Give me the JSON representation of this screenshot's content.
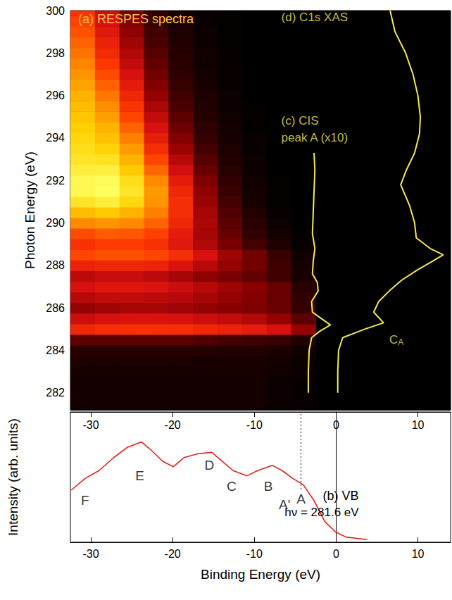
{
  "chart_data": [
    {
      "type": "heatmap",
      "title": "(a) RESPES spectra",
      "ylabel": "Photon Energy (eV)",
      "xlim": [
        -32.5,
        14
      ],
      "xticks": [
        -30,
        -20,
        -10,
        0,
        10
      ],
      "ylim": [
        281.2,
        300
      ],
      "yticks": [
        282,
        284,
        286,
        288,
        290,
        292,
        294,
        296,
        298,
        300
      ],
      "tick_labels": "y",
      "grid": false,
      "cells": {
        "x": [
          -31,
          -28,
          -25,
          -22,
          -19,
          -16,
          -13,
          -10,
          -7,
          -4
        ],
        "y": [
          281.5,
          282.0,
          282.5,
          283.0,
          283.5,
          284.0,
          284.5,
          285.0,
          285.5,
          286.0,
          286.5,
          287.0,
          287.5,
          288.0,
          288.5,
          289.0,
          289.5,
          290.0,
          290.5,
          291.0,
          291.5,
          292.0,
          292.5,
          293.0,
          293.5,
          294.0,
          294.5,
          295.0,
          295.5,
          296.0,
          296.5,
          297.0,
          297.5,
          298.0,
          298.5,
          299.0,
          299.5,
          300.0
        ],
        "z": [
          [
            0.5,
            0.5,
            0.5,
            0.5,
            0.5,
            0.5,
            0.5,
            0.5,
            0.3,
            0.2
          ],
          [
            0.5,
            0.5,
            0.5,
            0.5,
            0.5,
            0.5,
            0.5,
            0.5,
            0.3,
            0.2
          ],
          [
            0.5,
            0.5,
            0.5,
            0.5,
            0.5,
            0.5,
            0.5,
            0.5,
            0.3,
            0.2
          ],
          [
            0.6,
            0.6,
            0.6,
            0.6,
            0.6,
            0.6,
            0.6,
            0.6,
            0.4,
            0.3
          ],
          [
            0.7,
            0.7,
            0.7,
            0.7,
            0.7,
            0.6,
            0.6,
            0.6,
            0.5,
            0.3
          ],
          [
            1,
            1,
            1,
            1,
            1,
            0.9,
            0.8,
            0.8,
            0.7,
            0.4
          ],
          [
            2,
            2,
            2,
            2,
            2,
            1.8,
            1.6,
            1.5,
            1.3,
            0.8
          ],
          [
            5,
            5.2,
            5.3,
            5.3,
            5.2,
            5,
            4.8,
            4.6,
            4.2,
            3
          ],
          [
            4,
            4.2,
            4.3,
            4.3,
            4.2,
            4,
            3.8,
            3.5,
            3,
            2
          ],
          [
            3,
            3.2,
            3.3,
            3.3,
            3.2,
            3,
            2.8,
            2.6,
            2.2,
            1.3
          ],
          [
            3.6,
            3.8,
            3.8,
            3.7,
            3.6,
            3.3,
            3,
            2.7,
            2.2,
            1.2
          ],
          [
            4.2,
            4.4,
            4.4,
            4.3,
            4,
            3.6,
            3.2,
            2.8,
            2.2,
            1
          ],
          [
            3.7,
            3.9,
            3.9,
            3.7,
            3.3,
            2.9,
            2.5,
            2.1,
            1.5,
            0.6
          ],
          [
            4.8,
            5,
            5,
            4.8,
            4.3,
            3.6,
            3,
            2.4,
            1.5,
            0.5
          ],
          [
            5.8,
            6,
            6,
            5.8,
            5.2,
            4.2,
            3.2,
            2.4,
            1.4,
            0.4
          ],
          [
            5.3,
            5.6,
            5.6,
            5.3,
            4.5,
            3.5,
            2.5,
            1.6,
            0.8,
            0.2
          ],
          [
            5.9,
            6.2,
            6.1,
            5.7,
            4.6,
            3.3,
            2.2,
            1.2,
            0.5,
            0.1
          ],
          [
            7,
            7.2,
            7,
            6.3,
            5,
            3.4,
            2,
            1,
            0.3,
            0
          ],
          [
            8,
            8.3,
            7.8,
            6.8,
            5.2,
            3.3,
            1.8,
            0.8,
            0.2,
            0
          ],
          [
            9,
            9.3,
            8.6,
            7.2,
            5.2,
            3.1,
            1.6,
            0.6,
            0.1,
            0
          ],
          [
            9.6,
            9.8,
            9,
            7.3,
            5,
            2.9,
            1.4,
            0.5,
            0.1,
            0
          ],
          [
            9.6,
            9.7,
            8.8,
            7,
            4.6,
            2.6,
            1.2,
            0.4,
            0.1,
            0
          ],
          [
            9.3,
            9.3,
            8.3,
            6.4,
            4.1,
            2.2,
            1,
            0.3,
            0,
            0
          ],
          [
            9,
            8.9,
            7.8,
            5.8,
            3.6,
            1.9,
            0.8,
            0.3,
            0,
            0
          ],
          [
            8.8,
            8.5,
            7.3,
            5.2,
            3.1,
            1.6,
            0.7,
            0.2,
            0,
            0
          ],
          [
            8.6,
            8.1,
            6.8,
            4.7,
            2.7,
            1.3,
            0.6,
            0.2,
            0,
            0
          ],
          [
            8.4,
            7.8,
            6.3,
            4.2,
            2.3,
            1.1,
            0.5,
            0.1,
            0,
            0
          ],
          [
            8.2,
            7.4,
            5.8,
            3.8,
            2,
            0.9,
            0.4,
            0.1,
            0,
            0
          ],
          [
            8,
            7.1,
            5.4,
            3.4,
            1.7,
            0.8,
            0.3,
            0.1,
            0,
            0
          ],
          [
            7.8,
            6.7,
            5,
            3,
            1.5,
            0.7,
            0.3,
            0,
            0,
            0
          ],
          [
            7.5,
            6.3,
            4.6,
            2.7,
            1.3,
            0.6,
            0.2,
            0,
            0,
            0
          ],
          [
            7.2,
            5.9,
            4.2,
            2.4,
            1.1,
            0.5,
            0.2,
            0,
            0,
            0
          ],
          [
            6.9,
            5.5,
            3.8,
            2.1,
            1,
            0.4,
            0.2,
            0,
            0,
            0
          ],
          [
            6.6,
            5.1,
            3.5,
            1.9,
            0.9,
            0.4,
            0.1,
            0,
            0,
            0
          ],
          [
            6.3,
            4.8,
            3.2,
            1.7,
            0.8,
            0.3,
            0.1,
            0,
            0,
            0
          ],
          [
            6,
            4.5,
            2.9,
            1.5,
            0.7,
            0.3,
            0.1,
            0,
            0,
            0
          ],
          [
            5.7,
            4.2,
            2.7,
            1.3,
            0.6,
            0.2,
            0.1,
            0,
            0,
            0
          ],
          [
            5.4,
            4,
            2.5,
            1.2,
            0.5,
            0.2,
            0.1,
            0,
            0,
            0
          ]
        ]
      },
      "series": [
        {
          "type": "line",
          "color": "#f5e94e",
          "x": [
            -3.4,
            -3.4,
            -3.3,
            -3.0,
            -2.0,
            -0.7,
            -1.8,
            -2.9,
            -3.0,
            -2.2,
            -2.3,
            -2.9,
            -2.8,
            -2.6,
            -2.9,
            -2.8,
            -2.7,
            -2.6,
            -2.7
          ],
          "y": [
            282.0,
            283.0,
            284.0,
            284.6,
            284.9,
            285.2,
            285.5,
            285.8,
            286.3,
            286.8,
            287.2,
            287.6,
            288.2,
            288.8,
            289.5,
            290.5,
            291.5,
            292.5,
            293.3
          ]
        },
        {
          "type": "line",
          "color": "#f5e94e",
          "x": [
            0.2,
            0.2,
            0.3,
            0.8,
            3.5,
            5.8,
            4.6,
            5.2,
            6.5,
            8,
            10,
            11.8,
            13.1,
            11.5,
            9.8,
            9.6,
            9,
            7.9,
            8.6,
            9.6,
            10.2,
            10.3,
            10,
            9.4,
            8.5,
            7.2,
            6.6
          ],
          "y": [
            282.0,
            283.0,
            284.0,
            284.6,
            285.0,
            285.3,
            285.8,
            286.3,
            286.8,
            287.3,
            287.8,
            288.2,
            288.5,
            288.8,
            289.3,
            290.0,
            290.8,
            291.8,
            292.5,
            293.3,
            294.2,
            295.0,
            296.0,
            297.0,
            298.0,
            299.0,
            300.0
          ]
        }
      ],
      "annotations": [
        {
          "text": "(d) C1s XAS",
          "x": -6.7,
          "y": 299.7,
          "color": "#f5e94e"
        },
        {
          "text": "(c) CIS",
          "x": -6.7,
          "y": 294.8,
          "color": "#f5e94e"
        },
        {
          "text": "peak A (x10)",
          "x": -6.7,
          "y": 294.0,
          "color": "#f5e94e"
        },
        {
          "text": "C",
          "subscript": "A",
          "x": 6.5,
          "y": 284.5,
          "color": "#f5e94e"
        }
      ]
    },
    {
      "type": "line",
      "title": "(b) VB",
      "subtitle": "hν = 281.6 eV",
      "xlabel": "Binding Energy (eV)",
      "ylabel": "Intensity (arb. units)",
      "xlim": [
        -32.5,
        14
      ],
      "xticks": [
        -30,
        -20,
        -10,
        0,
        10
      ],
      "ylim": [
        0,
        100
      ],
      "tick_labels": "x",
      "grid": false,
      "series": [
        {
          "color": "#e3201b",
          "x": [
            -32.4,
            -30.7,
            -29.0,
            -27.2,
            -25.5,
            -23.8,
            -22.5,
            -21.2,
            -19.9,
            -18.6,
            -16.9,
            -15.2,
            -13.9,
            -12.6,
            -10.9,
            -9.6,
            -7.8,
            -6.6,
            -5.3,
            -4.0,
            -2.7,
            -1.4,
            -0.1,
            1.2,
            2.5,
            3.8
          ],
          "values": [
            40,
            49,
            55,
            65,
            73,
            77,
            70,
            62,
            58,
            65,
            68,
            69,
            62,
            55,
            51,
            55,
            59,
            55,
            49,
            44,
            32,
            16,
            8,
            4,
            3,
            2
          ]
        }
      ],
      "annotations": [
        {
          "text": "F",
          "x": -30.7,
          "y": 32
        },
        {
          "text": "E",
          "x": -24,
          "y": 51
        },
        {
          "text": "D",
          "x": -15.5,
          "y": 59
        },
        {
          "text": "C",
          "x": -12.8,
          "y": 43
        },
        {
          "text": "B",
          "x": -8.3,
          "y": 43
        },
        {
          "text": "A'",
          "x": -6.3,
          "y": 29
        },
        {
          "text": "A",
          "x": -4.3,
          "y": 33,
          "line_style": "dotted"
        }
      ]
    }
  ]
}
